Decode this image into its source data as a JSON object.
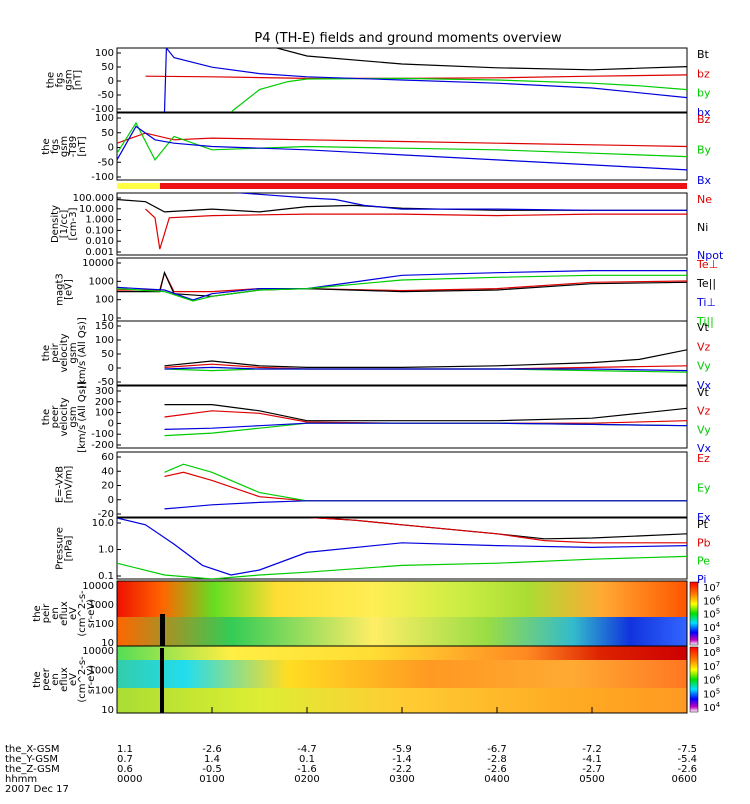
{
  "title": "P4 (TH-E) fields and ground moments overview",
  "chart_data": [
    {
      "type": "line",
      "ylabel": [
        "the",
        "fgs",
        "gsm",
        "[nT]"
      ],
      "yticks": [
        "100",
        "50",
        "0",
        "-50",
        "-100"
      ],
      "ylim": [
        -100,
        100
      ],
      "legend": [
        "Bt",
        "bz",
        "by",
        "bx"
      ],
      "series": [
        {
          "name": "Bt",
          "color": "#000000",
          "x": [
            1.3,
            2.0,
            3.0,
            4.0,
            5.0,
            5.4,
            6.0
          ],
          "y": [
            130,
            75,
            50,
            38,
            32,
            36,
            42
          ]
        },
        {
          "name": "bz",
          "color": "#dd0000",
          "x": [
            0.3,
            1.0,
            2.0,
            3.0,
            4.0,
            5.0,
            6.0
          ],
          "y": [
            12,
            10,
            5,
            5,
            7,
            12,
            16
          ]
        },
        {
          "name": "by",
          "color": "#00cc00",
          "x": [
            1.2,
            1.5,
            1.8,
            2.0,
            3.0,
            4.0,
            5.0,
            5.5,
            6.0
          ],
          "y": [
            -100,
            -30,
            -5,
            3,
            5,
            0,
            -10,
            -18,
            -30
          ]
        },
        {
          "name": "bx",
          "color": "#0000dd",
          "x": [
            0.5,
            0.52,
            0.6,
            1.0,
            1.5,
            2.0,
            3.0,
            4.0,
            5.0,
            5.5,
            6.0
          ],
          "y": [
            -100,
            100,
            70,
            40,
            20,
            10,
            0,
            -10,
            -25,
            -40,
            -55
          ]
        }
      ]
    },
    {
      "type": "line",
      "ylabel": [
        "the",
        "fgs",
        "gsm",
        "-T89",
        "[nT]"
      ],
      "yticks": [
        "100",
        "50",
        "0",
        "-50",
        "-100"
      ],
      "ylim": [
        -100,
        100
      ],
      "legend": [
        "Bz",
        "By",
        "Bx"
      ],
      "series": [
        {
          "name": "Bz",
          "color": "#dd0000",
          "x": [
            0,
            0.3,
            0.6,
            1.0,
            2.0,
            3.0,
            4.0,
            5.0,
            6.0
          ],
          "y": [
            10,
            40,
            20,
            25,
            20,
            15,
            10,
            5,
            0
          ]
        },
        {
          "name": "By",
          "color": "#00cc00",
          "x": [
            0,
            0.2,
            0.4,
            0.6,
            1.0,
            2.0,
            3.0,
            4.0,
            5.0,
            6.0
          ],
          "y": [
            -20,
            70,
            -40,
            30,
            -10,
            0,
            -5,
            -10,
            -20,
            -30
          ]
        },
        {
          "name": "Bx",
          "color": "#0000dd",
          "x": [
            0,
            0.2,
            0.4,
            0.6,
            1.0,
            2.0,
            3.0,
            4.0,
            5.0,
            6.0
          ],
          "y": [
            -40,
            60,
            20,
            10,
            0,
            -10,
            -25,
            -40,
            -55,
            -70
          ]
        }
      ]
    },
    {
      "type": "line",
      "scale": "log",
      "ylabel": [
        "Density",
        "[1/cc]",
        "[cm-3]"
      ],
      "yticks": [
        "100.000",
        "10.000",
        "1.000",
        "0.100",
        "0.010",
        "0.001"
      ],
      "ylim": [
        0.001,
        100
      ],
      "legend": [
        "Ne",
        "Ni",
        "Npot"
      ],
      "series": [
        {
          "name": "Ne",
          "color": "#dd0000",
          "x": [
            0.3,
            0.4,
            0.45,
            0.55,
            1.0,
            2.0,
            3.0,
            4.0,
            5.0,
            6.0
          ],
          "y": [
            5,
            1,
            0.003,
            1,
            1.5,
            2,
            2,
            1.5,
            2,
            2
          ]
        },
        {
          "name": "Ni",
          "color": "#000000",
          "x": [
            0,
            0.3,
            0.5,
            1.0,
            1.5,
            2.0,
            2.5,
            3.0,
            4.0,
            5.0,
            6.0
          ],
          "y": [
            30,
            20,
            3,
            5,
            3,
            8,
            10,
            6,
            4,
            4,
            4
          ]
        },
        {
          "name": "Npot",
          "color": "#0000dd",
          "x": [
            1.0,
            2.0,
            2.3,
            2.6,
            3.0,
            4.0,
            5.0,
            6.0
          ],
          "y": [
            150,
            40,
            30,
            10,
            5,
            5,
            4,
            4
          ]
        }
      ]
    },
    {
      "type": "line",
      "scale": "log",
      "ylabel": [
        "magt3",
        "[eV]"
      ],
      "yticks": [
        "10000",
        "1000",
        "100",
        "10"
      ],
      "ylim": [
        10,
        10000
      ],
      "legend": [
        "Te⊥",
        "Te||",
        "Ti⊥",
        "Ti||"
      ],
      "series": [
        {
          "name": "Te⊥",
          "color": "#dd0000",
          "x": [
            0,
            0.45,
            0.5,
            0.6,
            1.0,
            1.5,
            2.0,
            3.0,
            4.0,
            5.0,
            6.0
          ],
          "y": [
            300,
            300,
            2000,
            250,
            250,
            350,
            350,
            280,
            350,
            700,
            800
          ]
        },
        {
          "name": "Te||",
          "color": "#000000",
          "x": [
            0,
            0.45,
            0.5,
            0.6,
            1.0,
            1.5,
            2.0,
            3.0,
            4.0,
            5.0,
            6.0
          ],
          "y": [
            250,
            250,
            2000,
            200,
            150,
            300,
            350,
            250,
            300,
            600,
            700
          ]
        },
        {
          "name": "Ti⊥",
          "color": "#0000dd",
          "x": [
            0,
            0.5,
            0.8,
            1.0,
            1.5,
            2.0,
            3.0,
            4.0,
            5.0,
            6.0
          ],
          "y": [
            400,
            300,
            100,
            200,
            350,
            350,
            1500,
            2000,
            2500,
            2500
          ]
        },
        {
          "name": "Ti||",
          "color": "#00cc00",
          "x": [
            0,
            0.5,
            0.8,
            1.0,
            1.5,
            2.0,
            3.0,
            4.0,
            5.0,
            6.0
          ],
          "y": [
            350,
            250,
            90,
            150,
            300,
            350,
            900,
            1200,
            1500,
            1500
          ]
        }
      ]
    },
    {
      "type": "line",
      "ylabel": [
        "the",
        "peir",
        "velocity",
        "gsm",
        "[km/s (All Qs)]"
      ],
      "yticks": [
        "150",
        "100",
        "50",
        "0",
        "-50"
      ],
      "ylim": [
        -50,
        150
      ],
      "legend": [
        "Vt",
        "Vz",
        "Vy",
        "Vx"
      ],
      "series": [
        {
          "name": "Vt",
          "color": "#000000",
          "x": [
            0.5,
            1.0,
            1.5,
            2.0,
            3.0,
            4.0,
            5.0,
            5.5,
            6.0
          ],
          "y": [
            10,
            25,
            10,
            5,
            5,
            10,
            20,
            30,
            60
          ]
        },
        {
          "name": "Vz",
          "color": "#dd0000",
          "x": [
            0.5,
            1.0,
            1.5,
            2.0,
            3.0,
            4.0,
            5.0,
            6.0
          ],
          "y": [
            5,
            15,
            5,
            0,
            0,
            0,
            5,
            10
          ]
        },
        {
          "name": "Vy",
          "color": "#00cc00",
          "x": [
            0.5,
            1.0,
            1.5,
            2.0,
            3.0,
            4.0,
            5.0,
            6.0
          ],
          "y": [
            0,
            -5,
            0,
            0,
            0,
            0,
            -5,
            -10
          ]
        },
        {
          "name": "Vx",
          "color": "#0000dd",
          "x": [
            0.5,
            1.0,
            1.5,
            2.0,
            3.0,
            4.0,
            5.0,
            6.0
          ],
          "y": [
            0,
            5,
            0,
            0,
            0,
            0,
            0,
            -5
          ]
        }
      ]
    },
    {
      "type": "line",
      "ylabel": [
        "the",
        "peer",
        "velocity",
        "gsm",
        "[km/s (All Qs)]"
      ],
      "yticks": [
        "300",
        "200",
        "100",
        "0",
        "-100",
        "-200"
      ],
      "ylim": [
        -200,
        300
      ],
      "legend": [
        "Vt",
        "Vz",
        "Vy",
        "Vx"
      ],
      "series": [
        {
          "name": "Vt",
          "color": "#000000",
          "x": [
            0.5,
            1.0,
            1.5,
            2.0,
            3.0,
            4.0,
            5.0,
            5.5,
            6.0
          ],
          "y": [
            150,
            150,
            100,
            20,
            20,
            20,
            40,
            80,
            120
          ]
        },
        {
          "name": "Vz",
          "color": "#dd0000",
          "x": [
            0.5,
            1.0,
            1.5,
            2.0,
            3.0,
            4.0,
            5.0,
            6.0
          ],
          "y": [
            50,
            100,
            80,
            10,
            0,
            0,
            0,
            20
          ]
        },
        {
          "name": "Vy",
          "color": "#00cc00",
          "x": [
            0.5,
            1.0,
            1.5,
            2.0,
            3.0,
            4.0,
            5.0,
            6.0
          ],
          "y": [
            -100,
            -80,
            -40,
            0,
            0,
            0,
            -10,
            -20
          ]
        },
        {
          "name": "Vx",
          "color": "#0000dd",
          "x": [
            0.5,
            1.0,
            1.5,
            2.0,
            3.0,
            4.0,
            5.0,
            6.0
          ],
          "y": [
            -50,
            -40,
            -20,
            0,
            0,
            0,
            -10,
            -20
          ]
        }
      ]
    },
    {
      "type": "line",
      "ylabel": [
        "E=-VxB",
        "[mV/m]"
      ],
      "yticks": [
        "60",
        "40",
        "20",
        "0",
        "-20"
      ],
      "ylim": [
        -20,
        60
      ],
      "legend": [
        "Ez",
        "Ey",
        "Ex"
      ],
      "series": [
        {
          "name": "Ez",
          "color": "#dd0000",
          "x": [
            0.5,
            0.7,
            1.0,
            1.5,
            2.0,
            3.0,
            6.0
          ],
          "y": [
            30,
            35,
            25,
            5,
            0,
            0,
            0
          ]
        },
        {
          "name": "Ey",
          "color": "#00cc00",
          "x": [
            0.5,
            0.7,
            1.0,
            1.5,
            2.0,
            3.0,
            6.0
          ],
          "y": [
            35,
            45,
            35,
            10,
            0,
            0,
            0
          ]
        },
        {
          "name": "Ex",
          "color": "#0000dd",
          "x": [
            0.5,
            0.7,
            1.0,
            1.5,
            2.0,
            3.0,
            6.0
          ],
          "y": [
            -10,
            -8,
            -5,
            -2,
            0,
            0,
            0
          ]
        }
      ]
    },
    {
      "type": "line",
      "scale": "log",
      "ylabel": [
        "Pressure",
        "[nPa]"
      ],
      "yticks": [
        "10.0",
        "1.0",
        "0.1"
      ],
      "ylim": [
        0.02,
        10
      ],
      "legend": [
        "Pt",
        "Pb",
        "Pe",
        "Pi"
      ],
      "series": [
        {
          "name": "Pt",
          "color": "#000000",
          "x": [
            1.8,
            2.5,
            3.0,
            4.0,
            4.5,
            5.0,
            6.0
          ],
          "y": [
            12,
            8,
            5,
            2,
            1.2,
            1.3,
            2
          ]
        },
        {
          "name": "Pb",
          "color": "#dd0000",
          "x": [
            1.8,
            2.5,
            3.0,
            4.0,
            4.5,
            5.0,
            6.0
          ],
          "y": [
            12,
            8,
            5,
            2,
            1,
            0.8,
            0.8
          ]
        },
        {
          "name": "Pe",
          "color": "#00cc00",
          "x": [
            0,
            0.5,
            1.0,
            1.5,
            2.0,
            3.0,
            4.0,
            5.0,
            6.0
          ],
          "y": [
            0.1,
            0.03,
            0.02,
            0.03,
            0.04,
            0.08,
            0.1,
            0.15,
            0.2
          ]
        },
        {
          "name": "Pi",
          "color": "#0000dd",
          "x": [
            0,
            0.3,
            0.6,
            0.9,
            1.2,
            1.5,
            2.0,
            3.0,
            4.0,
            5.0,
            6.0
          ],
          "y": [
            10,
            5,
            0.7,
            0.08,
            0.03,
            0.05,
            0.3,
            0.8,
            0.6,
            0.5,
            0.6
          ]
        }
      ]
    },
    {
      "type": "heatmap",
      "ylabel": [
        "the",
        "peir",
        "en",
        "eflux",
        "eV",
        "(cm^2-s-",
        "sr-eV)"
      ],
      "yticks": [
        "10000",
        "1000",
        "100",
        "10"
      ],
      "colorbar_ticks": [
        "10^7",
        "10^6",
        "10^5",
        "10^4",
        "10^3"
      ]
    },
    {
      "type": "heatmap",
      "ylabel": [
        "the",
        "peer",
        "en",
        "eflux",
        "eV",
        "(cm^2-s-",
        "sr-eV)"
      ],
      "yticks": [
        "10000",
        "1000",
        "100",
        "10"
      ],
      "colorbar_ticks": [
        "10^8",
        "10^7",
        "10^6",
        "10^5",
        "10^4"
      ]
    }
  ],
  "time_axis": {
    "rows": [
      {
        "label": "the_X-GSM",
        "values": [
          "1.1",
          "-2.6",
          "-4.7",
          "-5.9",
          "-6.7",
          "-7.2",
          "-7.5"
        ]
      },
      {
        "label": "the_Y-GSM",
        "values": [
          "0.7",
          "1.4",
          "0.1",
          "-1.4",
          "-2.8",
          "-4.1",
          "-5.4"
        ]
      },
      {
        "label": "the_Z-GSM",
        "values": [
          "0.6",
          "-0.5",
          "-1.6",
          "-2.2",
          "-2.6",
          "-2.7",
          "-2.6"
        ]
      },
      {
        "label": "hhmm",
        "values": [
          "0000",
          "0100",
          "0200",
          "0300",
          "0400",
          "0500",
          "0600"
        ]
      }
    ],
    "date": "2007 Dec 17"
  }
}
